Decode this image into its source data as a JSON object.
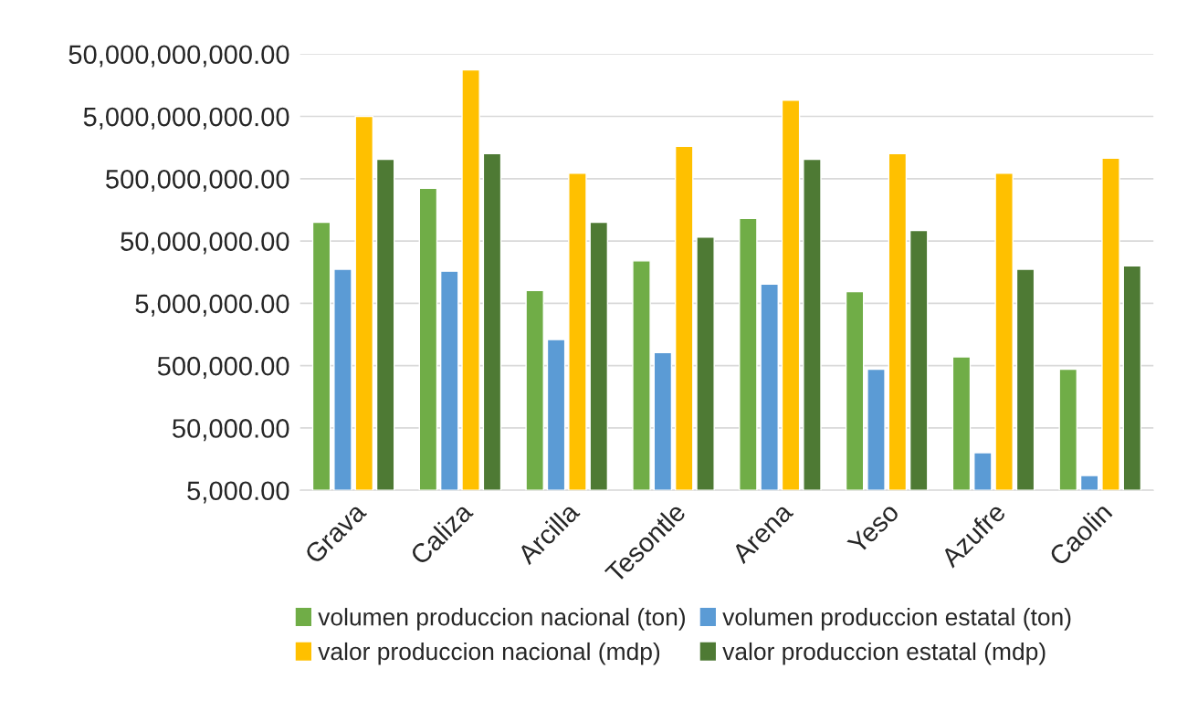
{
  "chart_data": {
    "type": "bar",
    "log": "y",
    "categories": [
      "Grava",
      "Caliza",
      "Arcilla",
      "Tesontle",
      "Arena",
      "Yeso",
      "Azufre",
      "Caolin"
    ],
    "series": [
      {
        "name": "volumen produccion nacional (ton)",
        "color": "#70ad47",
        "values": [
          100000000,
          350000000,
          8000000,
          24000000,
          115000000,
          7700000,
          690000,
          440000
        ]
      },
      {
        "name": "volumen produccion estatal (ton)",
        "color": "#5b9bd5",
        "values": [
          17600000,
          16400000,
          1310000,
          810000,
          10200000,
          440000,
          20000,
          8600
        ]
      },
      {
        "name": "valor produccion nacional (mdp)",
        "color": "#ffc000",
        "values": [
          5000000000,
          28000000000,
          610000000,
          1650000000,
          9100000000,
          1260000000,
          610000000,
          1070000000
        ]
      },
      {
        "name": "valor produccion estatal (mdp)",
        "color": "#4e7a34",
        "values": [
          1020000000,
          1260000000,
          100000000,
          58000000,
          1020000000,
          74000000,
          17600000,
          20000000
        ]
      }
    ],
    "ylim": [
      5000,
      50000000000
    ],
    "yticks": [
      {
        "value": 5000,
        "label": "5,000.00"
      },
      {
        "value": 50000,
        "label": "50,000.00"
      },
      {
        "value": 500000,
        "label": "500,000.00"
      },
      {
        "value": 5000000,
        "label": "5,000,000.00"
      },
      {
        "value": 50000000,
        "label": "50,000,000.00"
      },
      {
        "value": 500000000,
        "label": "500,000,000.00"
      },
      {
        "value": 5000000000,
        "label": "5,000,000,000.00"
      },
      {
        "value": 50000000000,
        "label": "50,000,000,000.00"
      }
    ],
    "grid": "y",
    "legend": "bottom"
  }
}
